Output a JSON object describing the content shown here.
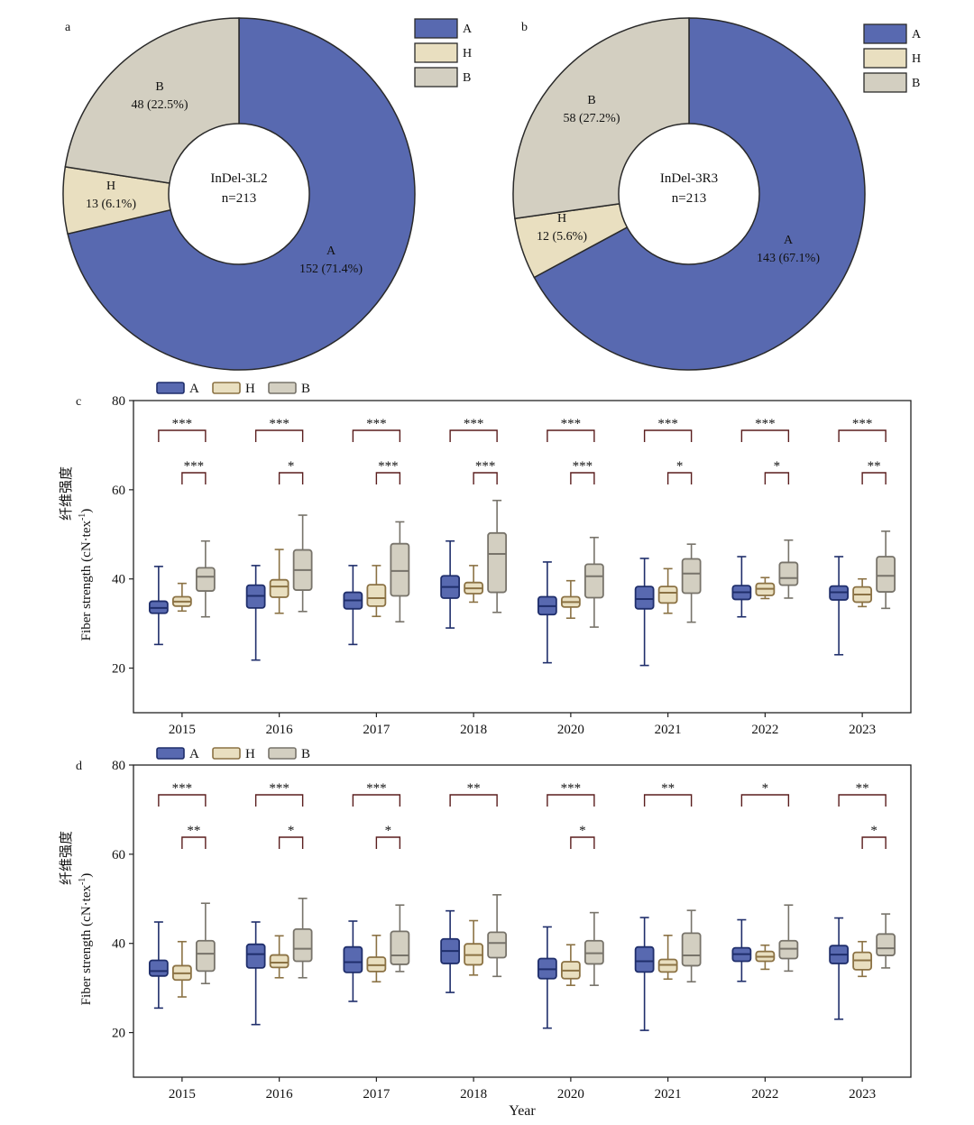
{
  "colors": {
    "A_fill": "#5869b0",
    "A_edge": "#1f2e6b",
    "H_fill": "#e9dfc0",
    "H_edge": "#8b7244",
    "B_fill": "#d3cfc1",
    "B_edge": "#77736a",
    "pie_edge": "#2a2a2a",
    "axis": "#222222",
    "sig": "#5a1d1d"
  },
  "legend_labels": [
    "A",
    "H",
    "B"
  ],
  "chart_data": [
    {
      "panel": "a",
      "type": "pie",
      "style": "donut",
      "center_label": [
        "InDel-3L2",
        "n=213"
      ],
      "legend_position": "top-right",
      "slices": [
        {
          "name": "A",
          "value": 152,
          "label": "152 (71.4%)"
        },
        {
          "name": "H",
          "value": 13,
          "label": "13 (6.1%)"
        },
        {
          "name": "B",
          "value": 48,
          "label": "48 (22.5%)"
        }
      ]
    },
    {
      "panel": "b",
      "type": "pie",
      "style": "donut",
      "center_label": [
        "InDel-3R3",
        "n=213"
      ],
      "legend_position": "top-right",
      "slices": [
        {
          "name": "A",
          "value": 143,
          "label": "143 (67.1%)"
        },
        {
          "name": "H",
          "value": 12,
          "label": "12 (5.6%)"
        },
        {
          "name": "B",
          "value": 58,
          "label": "58 (27.2%)"
        }
      ]
    },
    {
      "panel": "c",
      "type": "boxplot",
      "ylabel_cn": "纤维强度",
      "ylabel": "Fiber strength (cN·tex",
      "ylabel_sup": "-1",
      "ylabel_close": ")",
      "xlabel": "",
      "ylim": [
        10,
        80
      ],
      "yticks": [
        20,
        40,
        60,
        80
      ],
      "legend_position": "top-left",
      "categories": [
        "2015",
        "2016",
        "2017",
        "2018",
        "2020",
        "2021",
        "2022",
        "2023"
      ],
      "series": [
        {
          "name": "A",
          "stats": [
            [
              25.3,
              32.3,
              33.5,
              35,
              42.8
            ],
            [
              21.8,
              33.5,
              36.2,
              38.6,
              43
            ],
            [
              25.3,
              33.3,
              35.2,
              37,
              43
            ],
            [
              29,
              35.7,
              38.2,
              40.7,
              48.5
            ],
            [
              21.2,
              32,
              33.9,
              36,
              43.8
            ],
            [
              20.6,
              33.3,
              35.5,
              38.3,
              44.6
            ],
            [
              31.5,
              35.4,
              37,
              38.5,
              45
            ],
            [
              23,
              35.3,
              37,
              38.4,
              45
            ]
          ]
        },
        {
          "name": "H",
          "stats": [
            [
              32.8,
              33.9,
              34.9,
              36,
              39
            ],
            [
              32.3,
              35.9,
              38.3,
              39.8,
              46.6
            ],
            [
              31.6,
              33.9,
              35.7,
              38.7,
              43
            ],
            [
              34.8,
              36.7,
              37.9,
              39.2,
              43
            ],
            [
              31.2,
              33.7,
              34.8,
              36,
              39.6
            ],
            [
              32.3,
              34.6,
              36.9,
              38.3,
              42.3
            ],
            [
              35.6,
              36.3,
              37.8,
              39,
              40.3
            ],
            [
              33.8,
              34.8,
              36.5,
              38.2,
              40
            ]
          ]
        },
        {
          "name": "B",
          "stats": [
            [
              31.5,
              37.3,
              40.5,
              42.5,
              48.5
            ],
            [
              32.7,
              37.5,
              42,
              46.5,
              54.3
            ],
            [
              30.4,
              36.2,
              41.8,
              47.9,
              52.8
            ],
            [
              32.5,
              37,
              45.6,
              50.3,
              57.6
            ],
            [
              29.2,
              35.8,
              40.6,
              43.3,
              49.3
            ],
            [
              30.3,
              36.8,
              41.2,
              44.5,
              47.8
            ],
            [
              35.7,
              38.6,
              40.2,
              43.7,
              48.7
            ],
            [
              33.4,
              37.1,
              40.7,
              45,
              50.7
            ]
          ]
        }
      ],
      "significance": {
        "AB": [
          "***",
          "***",
          "***",
          "***",
          "***",
          "***",
          "***",
          "***"
        ],
        "HB": [
          "***",
          "*",
          "***",
          "***",
          "***",
          "*",
          "*",
          "**"
        ]
      }
    },
    {
      "panel": "d",
      "type": "boxplot",
      "ylabel_cn": "纤维强度",
      "ylabel": "Fiber strength (cN·tex",
      "ylabel_sup": "-1",
      "ylabel_close": ")",
      "xlabel": "Year",
      "ylim": [
        10,
        80
      ],
      "yticks": [
        20,
        40,
        60,
        80
      ],
      "legend_position": "top-left",
      "categories": [
        "2015",
        "2016",
        "2017",
        "2018",
        "2020",
        "2021",
        "2022",
        "2023"
      ],
      "series": [
        {
          "name": "A",
          "stats": [
            [
              25.5,
              32.7,
              33.8,
              36.2,
              44.8
            ],
            [
              21.8,
              34.5,
              37.6,
              39.8,
              44.8
            ],
            [
              27,
              33.5,
              35.8,
              39.2,
              45
            ],
            [
              29,
              35.5,
              38.3,
              41,
              47.3
            ],
            [
              21,
              32.1,
              34.2,
              36.6,
              43.7
            ],
            [
              20.5,
              33.6,
              36,
              39.2,
              45.8
            ],
            [
              31.5,
              36,
              37.6,
              39,
              45.3
            ],
            [
              23,
              35.5,
              37.5,
              39.5,
              45.7
            ]
          ]
        },
        {
          "name": "H",
          "stats": [
            [
              28,
              31.8,
              33.3,
              35,
              40.4
            ],
            [
              32.3,
              34.6,
              35.7,
              37.4,
              41.7
            ],
            [
              31.4,
              33.7,
              35.1,
              36.9,
              41.8
            ],
            [
              32.9,
              35.2,
              37.4,
              39.9,
              45.1
            ],
            [
              30.6,
              32.1,
              33.9,
              35.9,
              39.7
            ],
            [
              32,
              33.6,
              35.2,
              36.4,
              41.8
            ],
            [
              34.2,
              36,
              37,
              38.2,
              39.6
            ],
            [
              32.6,
              34.1,
              36.2,
              38,
              40.4
            ]
          ]
        },
        {
          "name": "B",
          "stats": [
            [
              31,
              33.8,
              37.7,
              40.6,
              49
            ],
            [
              32.3,
              36,
              38.8,
              43.2,
              50.1
            ],
            [
              33.7,
              35.3,
              37.3,
              42.7,
              48.6
            ],
            [
              32.6,
              36.8,
              40.1,
              42.5,
              50.9
            ],
            [
              30.6,
              35.4,
              37.8,
              40.6,
              46.9
            ],
            [
              31.4,
              35,
              37.3,
              42.3,
              47.4
            ],
            [
              33.8,
              36.6,
              38.8,
              40.6,
              48.6
            ],
            [
              34.5,
              37.3,
              38.9,
              42.1,
              46.6
            ]
          ]
        }
      ],
      "significance": {
        "AB": [
          "***",
          "***",
          "***",
          "**",
          "***",
          "**",
          "*",
          "**"
        ],
        "HB": [
          "**",
          "*",
          "*",
          "",
          "*",
          "",
          "",
          "*"
        ]
      }
    }
  ]
}
